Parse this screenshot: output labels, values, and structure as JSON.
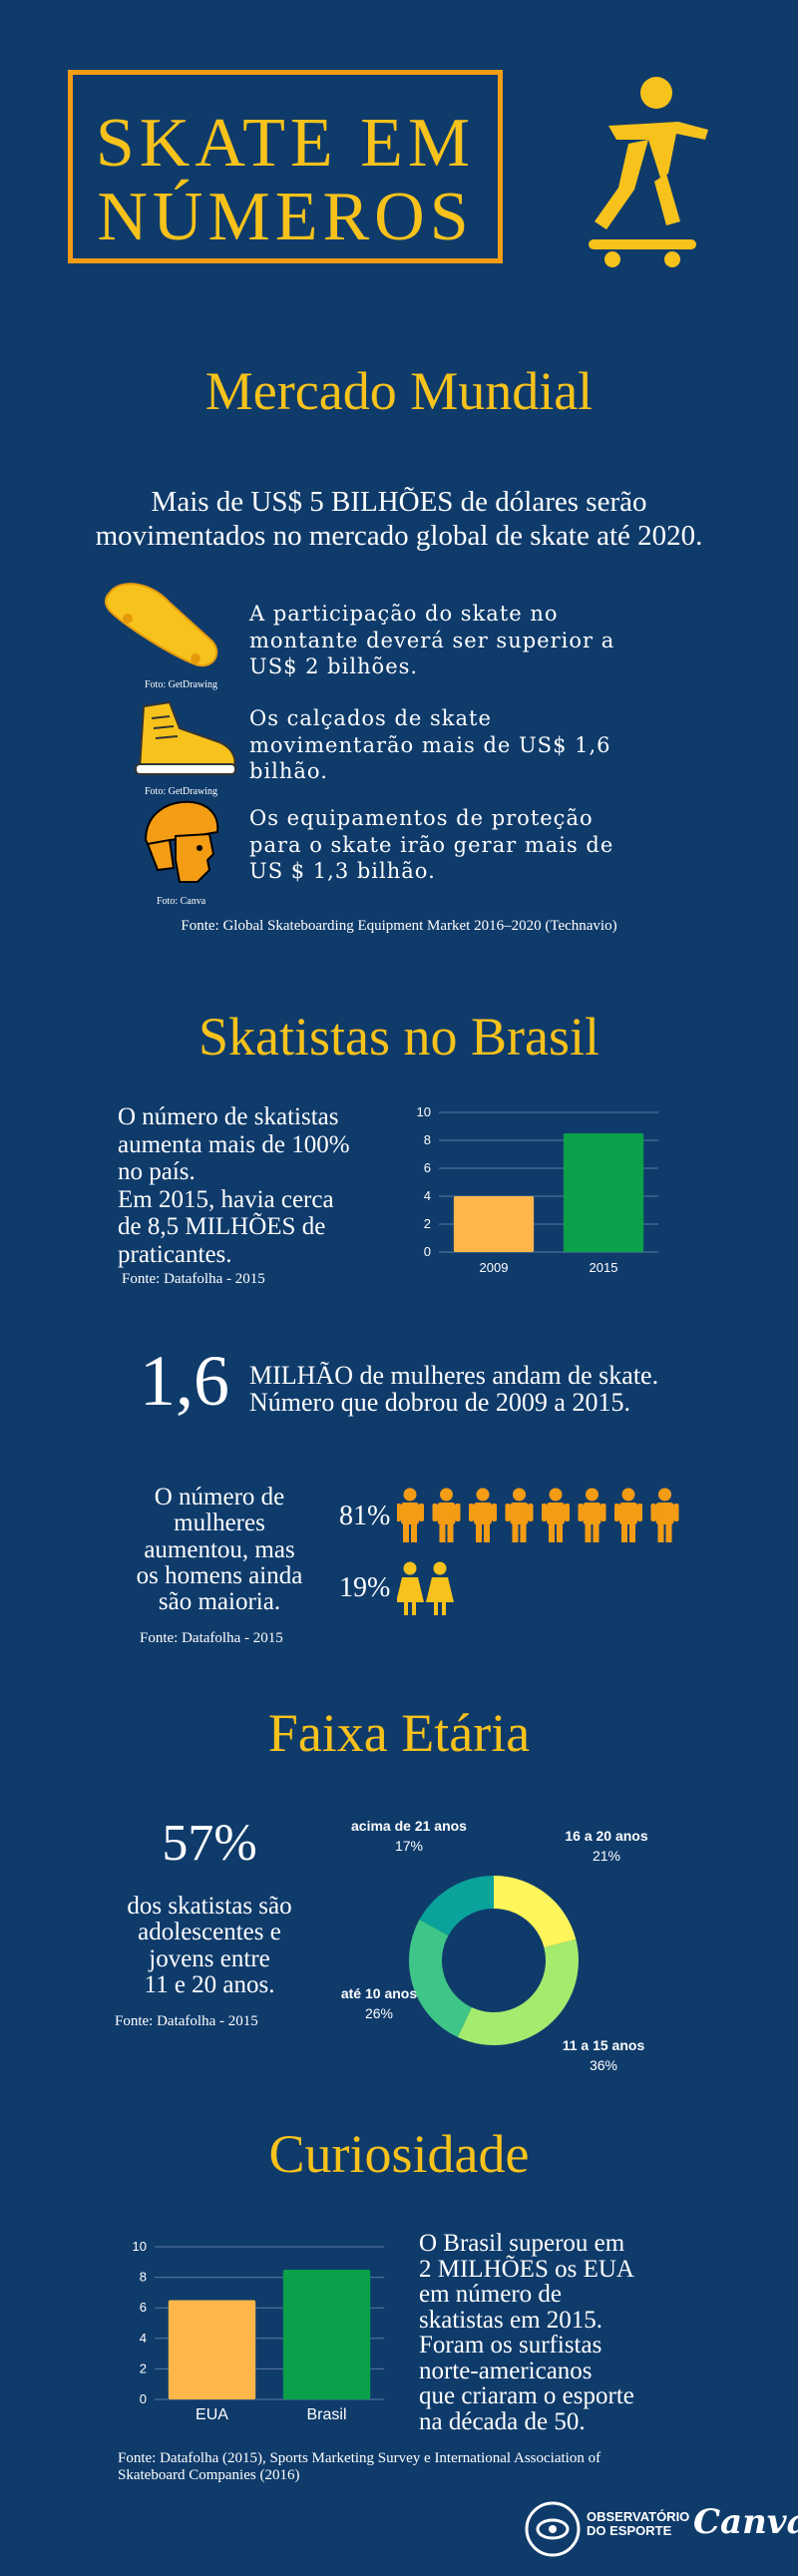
{
  "header": {
    "title_line1": "SKATE EM",
    "title_line2": "NÚMEROS",
    "skater_icon": "skateboarder-icon"
  },
  "mercado": {
    "heading": "Mercado Mundial",
    "intro_line1": "Mais de US$ 5 BILHÕES de dólares serão",
    "intro_line2": "movimentados no mercado global de skate até 2020.",
    "items": [
      {
        "icon": "skateboard-icon",
        "credit": "Foto: GetDrawing",
        "line1": "A participação do skate no",
        "line2": "montante deverá ser superior a",
        "line3": "US$ 2 bilhões."
      },
      {
        "icon": "sneaker-icon",
        "credit": "Foto: GetDrawing",
        "line1": "Os calçados de skate",
        "line2": "movimentarão mais de US$ 1,6",
        "line3": "bilhão."
      },
      {
        "icon": "helmet-icon",
        "credit": "Foto: Canva",
        "line1": "Os equipamentos de proteção",
        "line2": "para o skate irão gerar mais de",
        "line3": "US $ 1,3 bilhão."
      }
    ],
    "source": "Fonte:  Global Skateboarding Equipment Market 2016–2020 (Technavio)"
  },
  "brasil": {
    "heading": "Skatistas no Brasil",
    "text_lines": [
      "O número de skatistas",
      "aumenta mais de 100%",
      "no país.",
      "Em 2015, havia cerca",
      "de 8,5 MILHÕES de",
      "praticantes."
    ],
    "source": "Fonte: Datafolha - 2015"
  },
  "mulheres": {
    "big_number": "1,6",
    "line1": "MILHÃO de mulheres andam de skate.",
    "line2": "Número que dobrou de 2009 a 2015.",
    "text_lines": [
      "O número de",
      "mulheres",
      "aumentou, mas",
      "os homens ainda",
      "são maioria."
    ],
    "men_pct": "81%",
    "women_pct": "19%",
    "men_fraction": 0.81,
    "women_fraction": 0.19,
    "source": "Fonte: Datafolha - 2015",
    "man_icon": "man-icon",
    "woman_icon": "woman-icon"
  },
  "faixa": {
    "heading": "Faixa Etária",
    "big_pct": "57%",
    "text_lines": [
      "dos skatistas são",
      "adolescentes e",
      "jovens entre",
      "11 e 20 anos."
    ],
    "source": "Fonte: Datafolha - 2015"
  },
  "curiosidade": {
    "heading": "Curiosidade",
    "text_lines": [
      "O Brasil superou em",
      "2 MILHÕES os EUA",
      "em número de",
      "skatistas em 2015.",
      "Foram os surfistas",
      "norte-americanos",
      "que criaram o esporte",
      "na década de 50."
    ],
    "source_line1": "Fonte: Datafolha (2015), Sports Marketing Survey e International Association of",
    "source_line2": "Skateboard Companies (2016)"
  },
  "footer": {
    "logo_line1": "OBSERVATÓRIO",
    "logo_line2": "DO ESPORTE",
    "canva": "Canva"
  },
  "colors": {
    "background": "#0f3b6b",
    "accent_yellow": "#f7c21b",
    "orange": "#f49c14",
    "bar_yellow": "#fcb64a",
    "bar_green": "#0aa14a"
  },
  "chart_data": [
    {
      "type": "bar",
      "categories": [
        "2009",
        "2015"
      ],
      "values": [
        4,
        8.5
      ],
      "ylim": [
        0,
        10
      ],
      "yticks": [
        0,
        2,
        4,
        6,
        8,
        10
      ],
      "grid": true,
      "colors": [
        "#fcb64a",
        "#0aa14a"
      ]
    },
    {
      "type": "pie",
      "donut": true,
      "labels": [
        "16 a 20 anos",
        "11 a 15 anos",
        "até 10 anos",
        "acima de 21 anos"
      ],
      "values": [
        21,
        36,
        26,
        17
      ],
      "value_labels": [
        "21%",
        "36%",
        "26%",
        "17%"
      ],
      "colors": [
        "#fef55a",
        "#a4ec6e",
        "#3ec587",
        "#0aa39b"
      ]
    },
    {
      "type": "bar",
      "categories": [
        "EUA",
        "Brasil"
      ],
      "values": [
        6.5,
        8.5
      ],
      "ylim": [
        0,
        10
      ],
      "yticks": [
        0,
        2,
        4,
        6,
        8,
        10
      ],
      "grid": true,
      "colors": [
        "#fcb64a",
        "#0aa14a"
      ]
    }
  ]
}
